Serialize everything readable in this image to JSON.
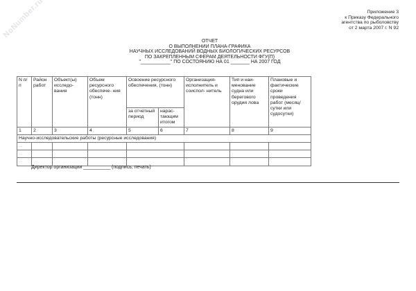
{
  "watermark": "NoNumber.ru",
  "appendix": [
    "Приложение 3",
    "к Приказу Федерального",
    "агентства по рыболовству",
    "от 2 марта 2007 г. N 92"
  ],
  "title": [
    "ОТЧЕТ",
    "О ВЫПОЛНЕНИИ ПЛАНА-ГРАФИКА",
    "НАУЧНЫХ ИССЛЕДОВАНИЙ ВОДНЫХ БИОЛОГИЧЕСКИХ РЕСУРСОВ",
    "ПО ЗАКРЕПЛЕННЫМ СФЕРАМ ДЕЯТЕЛЬНОСТИ ФГУ(П)",
    "\"___________\" ПО СОСТОЯНИЮ НА 01 _______ НА 2007 ГОД"
  ],
  "table": {
    "headers": [
      "N п/п",
      "Район работ",
      "Объект(ы) исследо- вания",
      "Объем ресурсного обеспече- ния (тонн)",
      "Освоение ресурсного обеспечения, (тонн)",
      "Организация- исполнитель и соиспол- нитель",
      "Тип и наи- менование судна или берегового орудия лова",
      "Плановые и фактические сроки проведения работ (месяц/ сутки или судосутки)"
    ],
    "subheaders": [
      "за отчетный период",
      "нарас- тающим итогом"
    ],
    "numbers": [
      "1",
      "2",
      "3",
      "4",
      "5",
      "6",
      "7",
      "8",
      "9"
    ],
    "section": "Научно-исследовательские работы (ресурсные исследования)",
    "rows": [
      "...",
      "...",
      "..."
    ]
  },
  "director": "Директор организации __________ (подпись, печать)"
}
